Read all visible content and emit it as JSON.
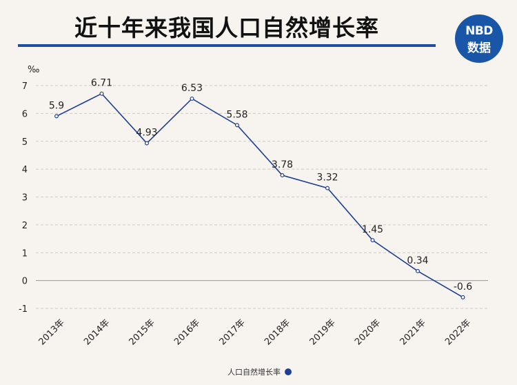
{
  "title": "近十年来我国人口自然增长率",
  "logo": {
    "line1": "NBD",
    "line2": "数据"
  },
  "chart_data": {
    "type": "line",
    "title": "近十年来我国人口自然增长率",
    "unit": "‰",
    "categories": [
      "2013年",
      "2014年",
      "2015年",
      "2016年",
      "2017年",
      "2018年",
      "2019年",
      "2020年",
      "2021年",
      "2022年"
    ],
    "series": [
      {
        "name": "人口自然增长率",
        "values": [
          5.9,
          6.71,
          4.93,
          6.53,
          5.58,
          3.78,
          3.32,
          1.45,
          0.34,
          -0.6
        ],
        "color": "#1e3f96"
      }
    ],
    "y_ticks": [
      "-1",
      "0",
      "1",
      "2",
      "3",
      "4",
      "5",
      "6",
      "7"
    ],
    "ylim": [
      -1,
      7
    ],
    "grid": true,
    "legend": "bottom-center"
  }
}
